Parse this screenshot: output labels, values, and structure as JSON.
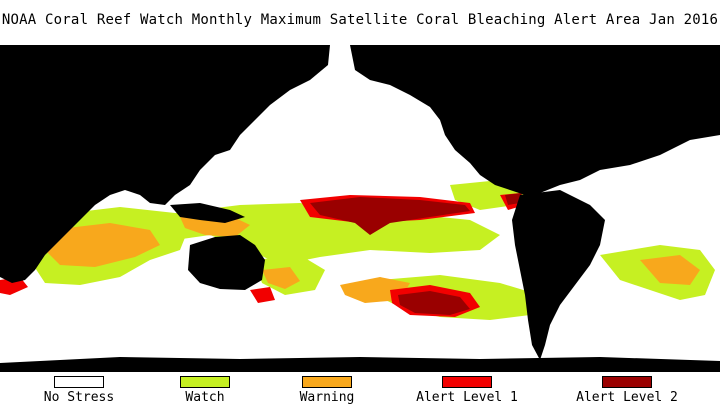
{
  "title": "NOAA Coral Reef Watch Monthly Maximum Satellite Coral Bleaching Alert Area   Jan 2016",
  "legend": [
    {
      "label": "No Stress",
      "color": "#ffffff"
    },
    {
      "label": "Watch",
      "color": "#c6f022"
    },
    {
      "label": "Warning",
      "color": "#f8a81c"
    },
    {
      "label": "Alert Level 1",
      "color": "#f20000"
    },
    {
      "label": "Alert Level 2",
      "color": "#9a0000"
    }
  ],
  "colors": {
    "land": "#000000",
    "ocean": "#ffffff"
  }
}
